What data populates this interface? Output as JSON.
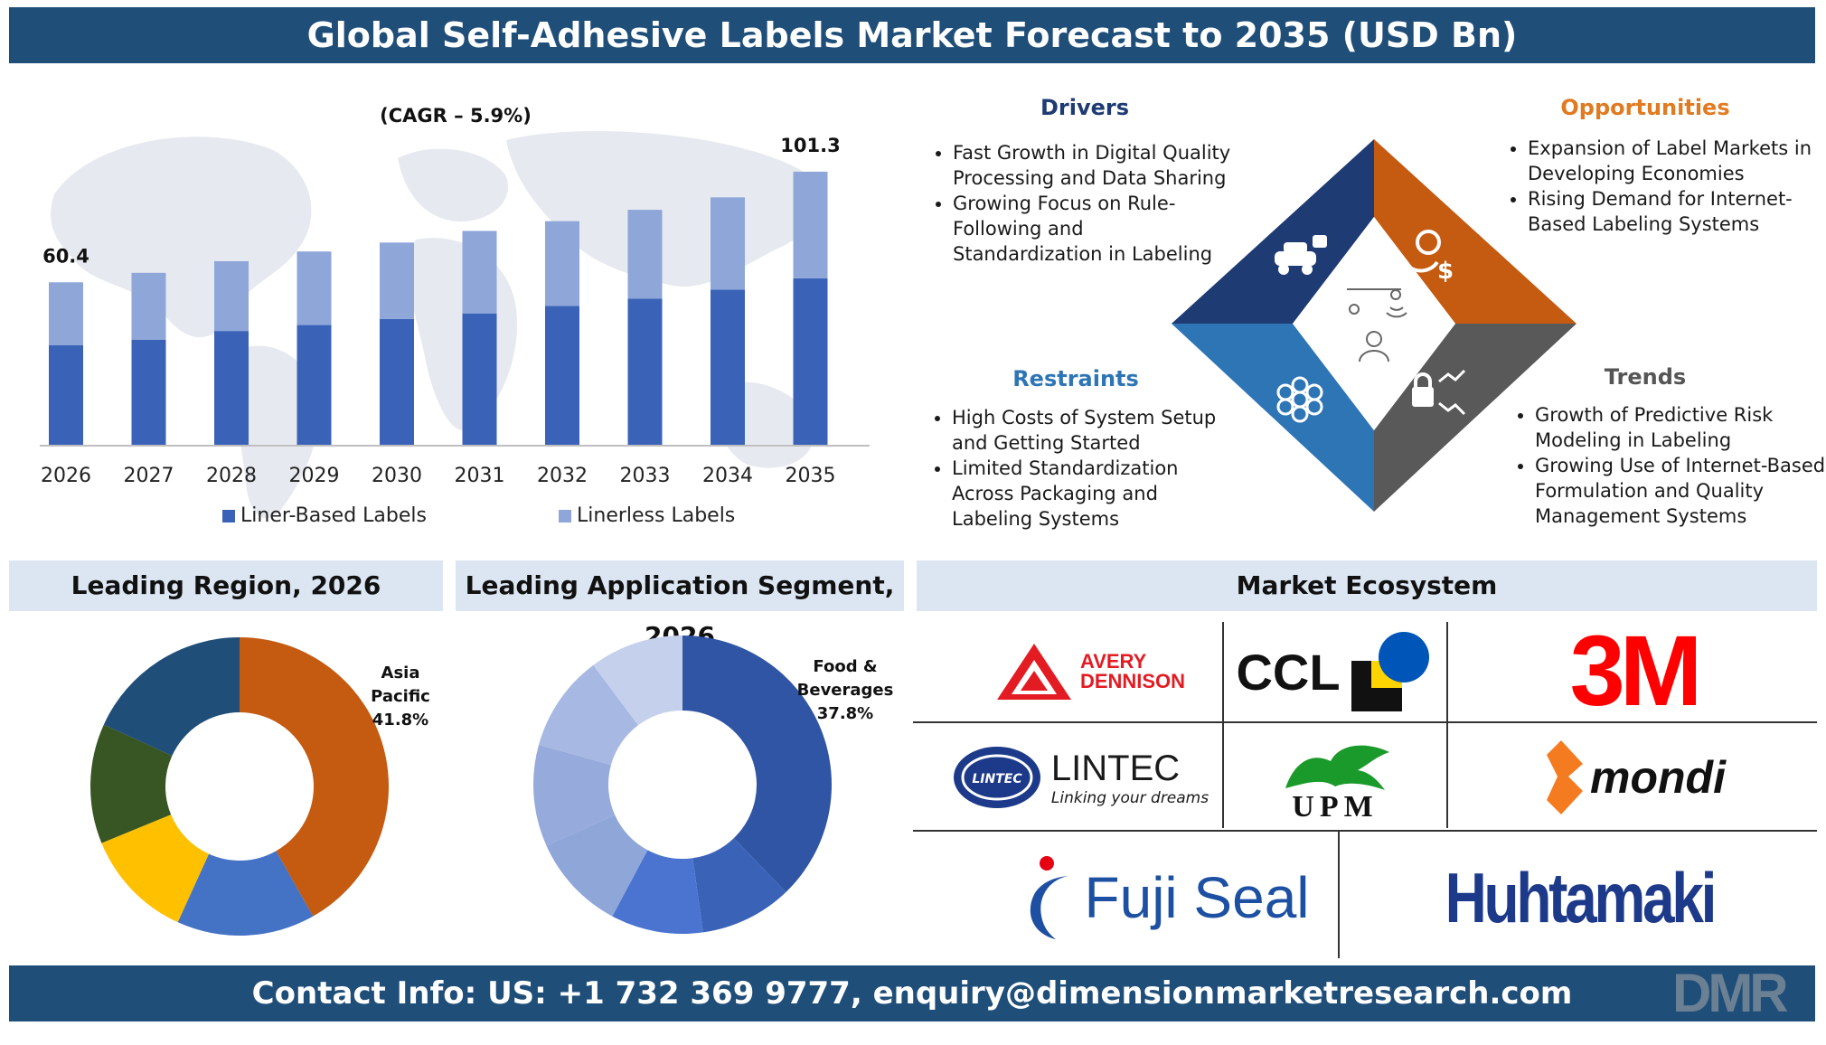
{
  "header": {
    "title": "Global Self-Adhesive Labels Market Forecast to 2035 (USD Bn)"
  },
  "chart_data": [
    {
      "type": "bar",
      "stacked": true,
      "categories": [
        "2026",
        "2027",
        "2028",
        "2029",
        "2030",
        "2031",
        "2032",
        "2033",
        "2034",
        "2035"
      ],
      "series": [
        {
          "name": "Liner-Based Labels",
          "color": "#3a63b8",
          "values": [
            37.1,
            39.2,
            42.4,
            44.6,
            46.8,
            48.9,
            51.7,
            54.4,
            57.7,
            61.9
          ]
        },
        {
          "name": "Linerless Labels",
          "color": "#8fa6d9",
          "values": [
            23.3,
            24.7,
            25.8,
            27.2,
            28.3,
            30.5,
            31.3,
            32.8,
            34.1,
            39.4
          ]
        }
      ],
      "totals": [
        60.4,
        63.9,
        68.2,
        71.8,
        75.1,
        79.4,
        83.0,
        87.2,
        91.8,
        101.3
      ],
      "data_labels": {
        "first": "60.4",
        "last": "101.3"
      },
      "annotation": "(CAGR – 5.9%)",
      "ylim": [
        0,
        125
      ],
      "grid": false,
      "legend": "bottom"
    },
    {
      "type": "pie",
      "title": "Leading Region, 2026",
      "donut": true,
      "slices": [
        {
          "value": 41.8,
          "color": "#c55a11"
        },
        {
          "value": 15.0,
          "color": "#4472c4"
        },
        {
          "value": 12.0,
          "color": "#ffc000"
        },
        {
          "value": 13.0,
          "color": "#375623"
        },
        {
          "value": 18.2,
          "color": "#1f4e79"
        }
      ],
      "callout": {
        "line1": "Asia",
        "line2": "Pacific",
        "line3": "41.8%"
      }
    },
    {
      "type": "pie",
      "title": "Leading Application Segment, 2026",
      "donut": true,
      "slices": [
        {
          "value": 37.8,
          "color": "#2f55a4"
        },
        {
          "value": 10.0,
          "color": "#3a63b8"
        },
        {
          "value": 10.0,
          "color": "#4a74d0"
        },
        {
          "value": 10.5,
          "color": "#8fa6d9"
        },
        {
          "value": 11.0,
          "color": "#96abdc"
        },
        {
          "value": 10.5,
          "color": "#a7b9e2"
        },
        {
          "value": 10.2,
          "color": "#c5d0ec"
        }
      ],
      "callout": {
        "line1": "Food &",
        "line2": "Beverages",
        "line3": "37.8%"
      }
    }
  ],
  "dynamics": {
    "drivers": {
      "title": "Drivers",
      "title_color": "#1f3b73",
      "items": [
        "Fast Growth in Digital Quality Processing and Data Sharing",
        "Growing Focus on Rule-Following and Standardization in Labeling"
      ]
    },
    "opportunities": {
      "title": "Opportunities",
      "title_color": "#e07b22",
      "items": [
        "Expansion of Label Markets in Developing Economies",
        "Rising Demand for Internet-Based Labeling Systems"
      ]
    },
    "restraints": {
      "title": "Restraints",
      "title_color": "#2e75b6",
      "items": [
        "High Costs of System Setup and Getting Started",
        "Limited Standardization Across Packaging and Labeling Systems"
      ]
    },
    "trends": {
      "title": "Trends",
      "title_color": "#555555",
      "items": [
        "Growth of Predictive Risk Modeling in Labeling",
        "Growing Use of Internet-Based Formulation and Quality Management Systems"
      ]
    },
    "diamond_colors": {
      "top_left": "#1f3b73",
      "top_right": "#c55a11",
      "bottom_left": "#2e75b6",
      "bottom_right": "#595959"
    },
    "icons": [
      "robot-car-icon",
      "lightbulb-dollar-icon",
      "flower-network-icon",
      "lock-trend-icon",
      "person-network-icon"
    ]
  },
  "panels": {
    "region_title": "Leading Region, 2026",
    "segment_title": "Leading Application Segment, 2026",
    "ecosystem_title": "Market Ecosystem"
  },
  "ecosystem": {
    "avery_line1": "AVERY",
    "avery_line2": "DENNISON",
    "ccl": "CCL",
    "m3": "3M",
    "lintec": "LINTEC",
    "lintec_badge": "LINTEC",
    "lintec_tagline": "Linking your dreams",
    "upm": "UPM",
    "mondi": "mondi",
    "fuji": "Fuji Seal",
    "huhtamaki": "Huhtamaki"
  },
  "footer": {
    "contact": "Contact Info: US: +1 732 369 9777, enquiry@dimensionmarketresearch.com",
    "logo": "DMR"
  }
}
